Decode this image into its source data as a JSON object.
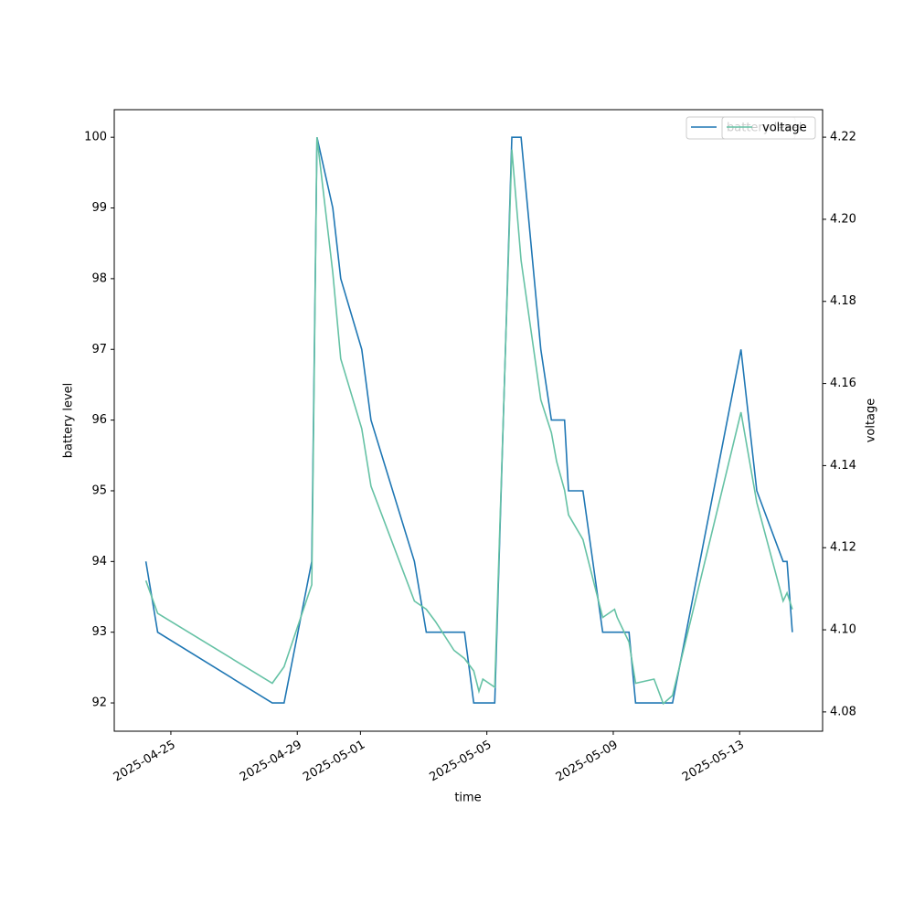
{
  "chart_data": {
    "type": "line",
    "x_label": "time",
    "y_label": "battery level",
    "y2_label": "voltage",
    "x": [
      "2025-04-24T05:00",
      "2025-04-24T14:00",
      "2025-04-28T05:00",
      "2025-04-28T14:00",
      "2025-04-29T11:00",
      "2025-04-29T15:00",
      "2025-04-30T03:00",
      "2025-04-30T09:00",
      "2025-05-01T01:00",
      "2025-05-01T08:00",
      "2025-05-02T17:00",
      "2025-05-03T02:00",
      "2025-05-03T09:00",
      "2025-05-03T23:00",
      "2025-05-04T07:00",
      "2025-05-04T14:00",
      "2025-05-04T18:00",
      "2025-05-04T21:00",
      "2025-05-05T06:00",
      "2025-05-05T19:00",
      "2025-05-06T02:00",
      "2025-05-06T17:00",
      "2025-05-07T01:00",
      "2025-05-07T05:00",
      "2025-05-07T11:00",
      "2025-05-07T14:00",
      "2025-05-08T01:00",
      "2025-05-08T16:00",
      "2025-05-09T01:00",
      "2025-05-09T03:00",
      "2025-05-09T12:00",
      "2025-05-09T17:00",
      "2025-05-10T07:00",
      "2025-05-10T14:00",
      "2025-05-10T21:00",
      "2025-05-13T01:00",
      "2025-05-13T13:00",
      "2025-05-14T09:00",
      "2025-05-14T12:00",
      "2025-05-14T16:00"
    ],
    "series": [
      {
        "name": "battery level",
        "color": "#1f77b4",
        "axis": "y",
        "values": [
          94,
          93,
          92,
          92,
          94,
          100,
          99,
          98,
          97,
          96,
          94,
          93,
          93,
          93,
          93,
          92,
          92,
          92,
          92,
          100,
          100,
          97,
          96,
          96,
          96,
          95,
          95,
          93,
          93,
          93,
          93,
          92,
          92,
          92,
          92,
          97,
          95,
          94,
          94,
          93
        ]
      },
      {
        "name": "voltage",
        "color": "#66c2a5",
        "axis": "y2",
        "values": [
          4.112,
          4.104,
          4.087,
          4.091,
          4.111,
          4.22,
          4.187,
          4.166,
          4.149,
          4.135,
          4.107,
          4.105,
          4.102,
          4.095,
          4.093,
          4.09,
          4.085,
          4.088,
          4.086,
          4.217,
          4.19,
          4.156,
          4.148,
          4.141,
          4.134,
          4.128,
          4.122,
          4.103,
          4.105,
          4.103,
          4.097,
          4.087,
          4.088,
          4.082,
          4.084,
          4.153,
          4.131,
          4.107,
          4.109,
          4.105
        ]
      }
    ],
    "xlim": [
      "2025-04-23T05:00",
      "2025-05-15T15:00"
    ],
    "xticks": [
      "2025-04-25",
      "2025-04-29",
      "2025-05-01",
      "2025-05-05",
      "2025-05-09",
      "2025-05-13"
    ],
    "ylim": [
      91.6,
      100.39
    ],
    "yticks": [
      92,
      93,
      94,
      95,
      96,
      97,
      98,
      99,
      100
    ],
    "y2lim": [
      4.0753,
      4.2267
    ],
    "y2ticks": [
      4.08,
      {
        "value": 4.1,
        "label": "4.10"
      },
      4.12,
      4.14,
      4.16,
      4.18,
      {
        "value": 4.2,
        "label": "4.20"
      },
      4.22
    ],
    "legend": "upper right",
    "grid": false
  }
}
